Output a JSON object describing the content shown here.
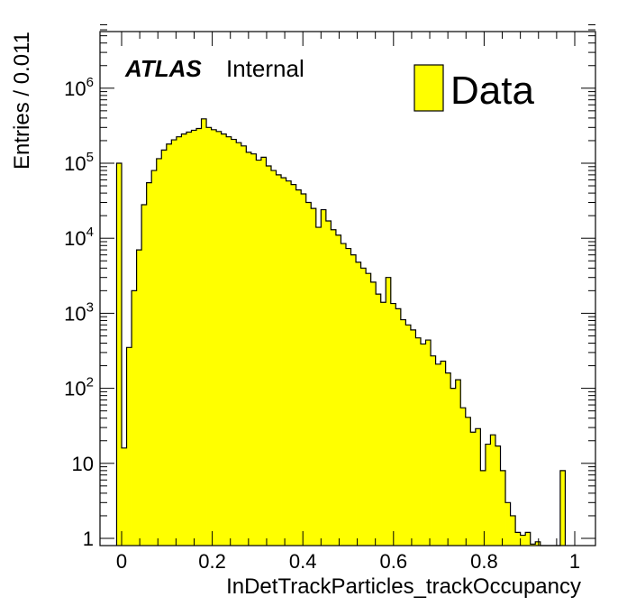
{
  "colors": {
    "fill": "#ffff00",
    "line": "#000000",
    "background": "#ffffff"
  },
  "chart_data": {
    "type": "bar",
    "log_y": true,
    "x_tick_labels": [
      "0",
      "0.2",
      "0.4",
      "0.6",
      "0.8",
      "1"
    ],
    "y_tick_labels": [
      {
        "base": "1",
        "exp": ""
      },
      {
        "base": "10",
        "exp": ""
      },
      {
        "base": "10",
        "exp": "2"
      },
      {
        "base": "10",
        "exp": "3"
      },
      {
        "base": "10",
        "exp": "4"
      },
      {
        "base": "10",
        "exp": "5"
      },
      {
        "base": "10",
        "exp": "6"
      }
    ],
    "xlabel": "InDetTrackParticles_trackOccupancy",
    "ylabel": "Entries / 0.011",
    "xlim": [
      -0.033,
      1.033
    ],
    "ylim": [
      0.84,
      7000000
    ],
    "bin_width": 0.011,
    "bin_start": -0.011,
    "legend": {
      "label": "Data",
      "position": "top-right"
    },
    "annotation": {
      "experiment": "ATLAS",
      "status": "Internal"
    },
    "grid": false,
    "values": [
      100000,
      16,
      350,
      2000,
      7000,
      28000,
      55000,
      80000,
      115000,
      150000,
      180000,
      205000,
      225000,
      245000,
      260000,
      275000,
      290000,
      390000,
      300000,
      280000,
      265000,
      245000,
      225000,
      208000,
      188000,
      170000,
      140000,
      133000,
      110000,
      120000,
      92000,
      80000,
      70000,
      64000,
      58000,
      52000,
      44000,
      39000,
      30000,
      25000,
      14000,
      24000,
      17000,
      13000,
      11000,
      8500,
      7300,
      6000,
      4800,
      4000,
      3400,
      2600,
      1800,
      1400,
      3000,
      1350,
      1150,
      820,
      700,
      600,
      470,
      390,
      440,
      270,
      210,
      230,
      160,
      100,
      130,
      55,
      41,
      26,
      29,
      8,
      18,
      24,
      17,
      8,
      3,
      2,
      1.2,
      1.1,
      1.2,
      0.84,
      0.9,
      0.8,
      0.8,
      0.8,
      0.8,
      8
    ]
  }
}
